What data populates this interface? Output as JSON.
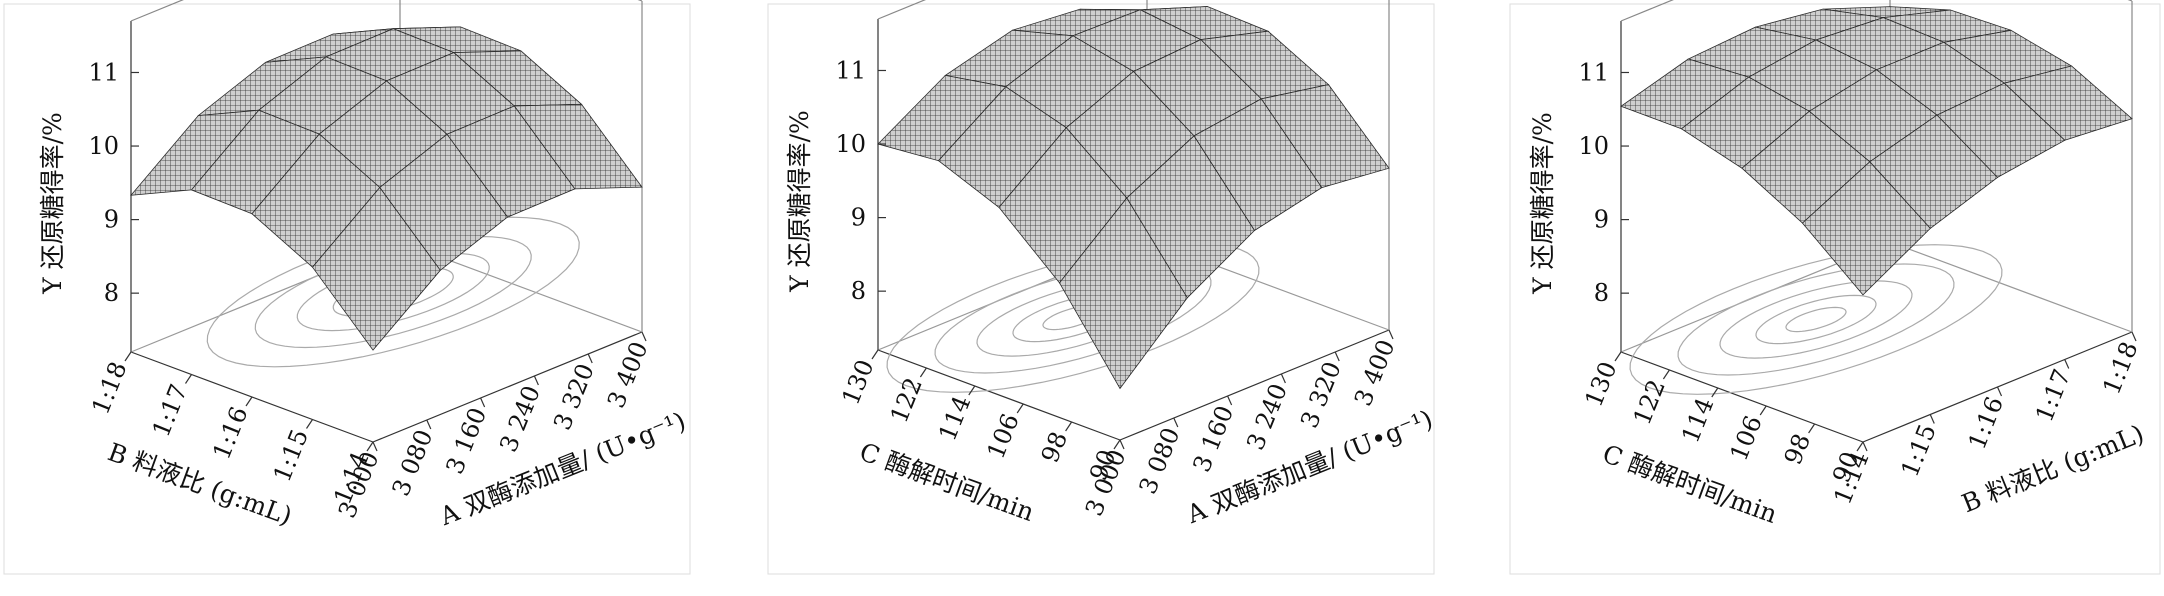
{
  "chart_data": [
    {
      "type": "surface",
      "z_label": "Y 还原糖得率/%",
      "x_label": "A 双酶添加量/ (U•g⁻¹)",
      "y_label": "B 料液比 (g:mL)",
      "color": "#2a2a2a",
      "x": [
        3000,
        3100,
        3200,
        3300,
        3400
      ],
      "y": [
        14,
        15,
        16,
        17,
        18
      ],
      "z": [
        [
          8.45,
          9.16,
          9.51,
          9.52,
          9.17
        ],
        [
          9.27,
          9.98,
          10.33,
          10.34,
          9.99
        ],
        [
          9.69,
          10.4,
          10.75,
          10.76,
          10.41
        ],
        [
          9.71,
          10.42,
          10.77,
          10.78,
          10.43
        ],
        [
          9.33,
          10.04,
          10.39,
          10.4,
          10.05
        ]
      ],
      "xlim": [
        3000,
        3400
      ],
      "xticks": [
        {
          "value": 3000,
          "label": "3 000"
        },
        {
          "value": 3080,
          "label": "3 080"
        },
        {
          "value": 3160,
          "label": "3 160"
        },
        {
          "value": 3240,
          "label": "3 240"
        },
        {
          "value": 3320,
          "label": "3 320"
        },
        {
          "value": 3400,
          "label": "3 400"
        }
      ],
      "ylim": [
        14,
        18
      ],
      "yticks": [
        {
          "value": 14,
          "label": "1:14"
        },
        {
          "value": 15,
          "label": "1:15"
        },
        {
          "value": 16,
          "label": "1:16"
        },
        {
          "value": 17,
          "label": "1:17"
        },
        {
          "value": 18,
          "label": "1:18"
        }
      ],
      "zlim": [
        7.2,
        11.7
      ],
      "zticks": [
        8,
        9,
        10,
        11
      ]
    },
    {
      "type": "surface",
      "z_label": "Y 还原糖得率/%",
      "x_label": "A 双酶添加量/ (U•g⁻¹)",
      "y_label": "C 酶解时间/min",
      "color": "#2a2a2a",
      "x": [
        3000,
        3100,
        3200,
        3300,
        3400
      ],
      "y": [
        90,
        100,
        110,
        120,
        130
      ],
      "z": [
        [
          7.9,
          8.76,
          9.3,
          9.51,
          9.4
        ],
        [
          9.03,
          9.81,
          10.28,
          10.41,
          10.23
        ],
        [
          9.75,
          10.46,
          10.85,
          10.91,
          10.65
        ],
        [
          10.08,
          10.71,
          11.03,
          11.01,
          10.68
        ],
        [
          10.0,
          10.56,
          10.8,
          10.71,
          10.3
        ]
      ],
      "xlim": [
        3000,
        3400
      ],
      "xticks": [
        {
          "value": 3000,
          "label": "3 000"
        },
        {
          "value": 3080,
          "label": "3 080"
        },
        {
          "value": 3160,
          "label": "3 160"
        },
        {
          "value": 3240,
          "label": "3 240"
        },
        {
          "value": 3320,
          "label": "3 320"
        },
        {
          "value": 3400,
          "label": "3 400"
        }
      ],
      "ylim": [
        90,
        130
      ],
      "yticks": [
        90,
        98,
        106,
        114,
        122,
        130
      ],
      "zlim": [
        7.2,
        11.7
      ],
      "zticks": [
        8,
        9,
        10,
        11
      ]
    },
    {
      "type": "surface",
      "z_label": "Y 还原糖得率/%",
      "x_label": "B 料液比 (g:mL)",
      "y_label": "C 酶解时间/min",
      "color": "#2a2a2a",
      "x": [
        14,
        15,
        16,
        17,
        18
      ],
      "y": [
        90,
        100,
        110,
        120,
        130
      ],
      "z": [
        [
          9.2,
          9.73,
          10.05,
          10.18,
          10.1
        ],
        [
          9.87,
          10.33,
          10.59,
          10.65,
          10.51
        ],
        [
          10.31,
          10.71,
          10.9,
          10.9,
          10.69
        ],
        [
          10.54,
          10.87,
          11.0,
          10.93,
          10.66
        ],
        [
          10.54,
          10.81,
          10.87,
          10.74,
          10.4
        ]
      ],
      "xlim": [
        14,
        18
      ],
      "xticks": [
        {
          "value": 14,
          "label": "1:14"
        },
        {
          "value": 15,
          "label": "1:15"
        },
        {
          "value": 16,
          "label": "1:16"
        },
        {
          "value": 17,
          "label": "1:17"
        },
        {
          "value": 18,
          "label": "1:18"
        }
      ],
      "ylim": [
        90,
        130
      ],
      "yticks": [
        90,
        98,
        106,
        114,
        122,
        130
      ],
      "zlim": [
        7.2,
        11.7
      ],
      "zticks": [
        8,
        9,
        10,
        11
      ]
    }
  ]
}
